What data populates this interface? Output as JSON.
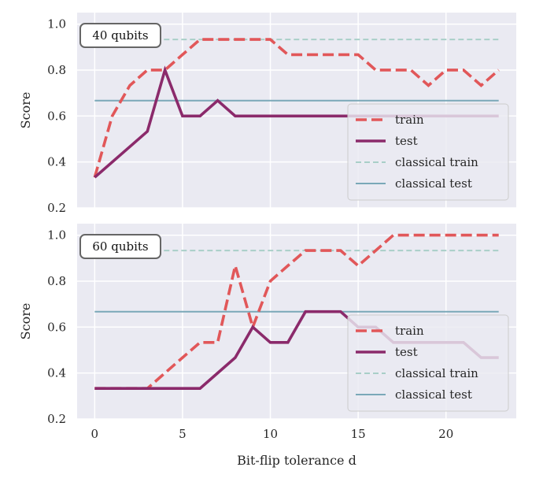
{
  "colors": {
    "panel_bg": "#eaeaf2",
    "grid": "#ffffff",
    "train": "#e15759",
    "test": "#8b2a6b",
    "classical_train": "#a9cfc8",
    "classical_test": "#7aa8b8",
    "text": "#262626"
  },
  "chart_data": [
    {
      "type": "line",
      "badge": "40 qubits",
      "ylabel": "Score",
      "xlabel": "",
      "xlim": [
        -1.0,
        24.0
      ],
      "ylim": [
        0.2,
        1.05
      ],
      "xticks": [
        0,
        5,
        10,
        15,
        20
      ],
      "xtick_labels": [
        "",
        "",
        "",
        "",
        ""
      ],
      "yticks": [
        0.2,
        0.4,
        0.6,
        0.8,
        1.0
      ],
      "ytick_labels": [
        "0.2",
        "0.4",
        "0.6",
        "0.8",
        "1.0"
      ],
      "legend_position": "lower-right",
      "series": [
        {
          "name": "train",
          "style": "dashed",
          "key": "train",
          "x": [
            0,
            1,
            2,
            3,
            4,
            5,
            6,
            7,
            8,
            9,
            10,
            11,
            12,
            13,
            14,
            15,
            16,
            17,
            18,
            19,
            20,
            21,
            22,
            23
          ],
          "y": [
            0.333,
            0.6,
            0.733,
            0.8,
            0.8,
            0.867,
            0.933,
            0.933,
            0.933,
            0.933,
            0.933,
            0.867,
            0.867,
            0.867,
            0.867,
            0.867,
            0.8,
            0.8,
            0.8,
            0.733,
            0.8,
            0.8,
            0.733,
            0.8
          ]
        },
        {
          "name": "test",
          "style": "solid",
          "key": "test",
          "x": [
            0,
            3,
            4,
            5,
            6,
            7,
            8,
            9,
            10,
            11,
            12,
            13,
            14,
            15,
            16,
            17,
            18,
            19,
            20,
            21,
            22,
            23
          ],
          "y": [
            0.333,
            0.533,
            0.8,
            0.6,
            0.6,
            0.667,
            0.6,
            0.6,
            0.6,
            0.6,
            0.6,
            0.6,
            0.6,
            0.6,
            0.6,
            0.6,
            0.6,
            0.6,
            0.6,
            0.6,
            0.6,
            0.6
          ]
        },
        {
          "name": "classical train",
          "style": "thin-dashed",
          "key": "classical_train",
          "x": [
            0,
            23
          ],
          "y": [
            0.933,
            0.933
          ]
        },
        {
          "name": "classical test",
          "style": "thin-solid",
          "key": "classical_test",
          "x": [
            0,
            23
          ],
          "y": [
            0.667,
            0.667
          ]
        }
      ]
    },
    {
      "type": "line",
      "badge": "60 qubits",
      "ylabel": "Score",
      "xlabel": "Bit-flip tolerance d",
      "xlim": [
        -1.0,
        24.0
      ],
      "ylim": [
        0.2,
        1.05
      ],
      "xticks": [
        0,
        5,
        10,
        15,
        20
      ],
      "xtick_labels": [
        "0",
        "5",
        "10",
        "15",
        "20"
      ],
      "yticks": [
        0.2,
        0.4,
        0.6,
        0.8,
        1.0
      ],
      "ytick_labels": [
        "0.2",
        "0.4",
        "0.6",
        "0.8",
        "1.0"
      ],
      "legend_position": "lower-right",
      "series": [
        {
          "name": "train",
          "style": "dashed",
          "key": "train",
          "x": [
            0,
            3,
            4,
            5,
            6,
            7,
            8,
            9,
            10,
            11,
            12,
            13,
            14,
            15,
            16,
            17,
            18,
            19,
            20,
            21,
            22,
            23
          ],
          "y": [
            0.333,
            0.333,
            0.4,
            0.467,
            0.533,
            0.533,
            0.867,
            0.6,
            0.8,
            0.867,
            0.933,
            0.933,
            0.933,
            0.867,
            0.933,
            1.0,
            1.0,
            1.0,
            1.0,
            1.0,
            1.0,
            1.0
          ]
        },
        {
          "name": "test",
          "style": "solid",
          "key": "test",
          "x": [
            0,
            6,
            7,
            8,
            9,
            10,
            11,
            12,
            13,
            14,
            15,
            16,
            17,
            18,
            19,
            20,
            21,
            22,
            23
          ],
          "y": [
            0.333,
            0.333,
            0.4,
            0.467,
            0.6,
            0.533,
            0.533,
            0.667,
            0.667,
            0.667,
            0.6,
            0.6,
            0.533,
            0.533,
            0.533,
            0.533,
            0.533,
            0.467,
            0.467
          ]
        },
        {
          "name": "classical train",
          "style": "thin-dashed",
          "key": "classical_train",
          "x": [
            0,
            23
          ],
          "y": [
            0.933,
            0.933
          ]
        },
        {
          "name": "classical test",
          "style": "thin-solid",
          "key": "classical_test",
          "x": [
            0,
            23
          ],
          "y": [
            0.667,
            0.667
          ]
        }
      ]
    }
  ]
}
